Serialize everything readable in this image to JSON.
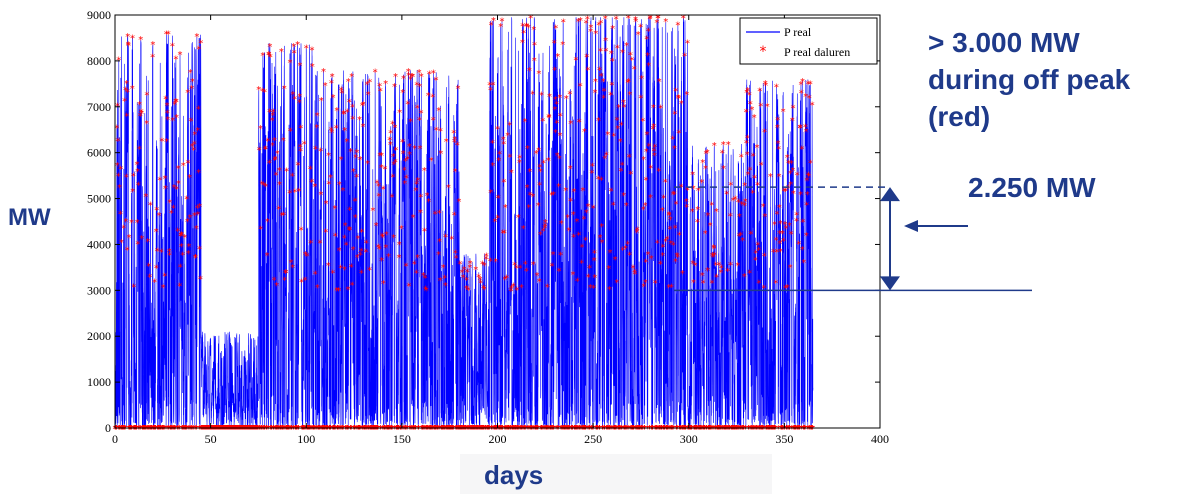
{
  "chart_data": {
    "type": "line",
    "ylabel": "MW",
    "xlabel": "days",
    "xlim": [
      0,
      400
    ],
    "ylim": [
      0,
      9000
    ],
    "xticks": [
      0,
      50,
      100,
      150,
      200,
      250,
      300,
      350,
      400
    ],
    "yticks": [
      0,
      1000,
      2000,
      3000,
      4000,
      5000,
      6000,
      7000,
      8000,
      9000
    ],
    "legend": {
      "position": "top-right",
      "entries": [
        "P real",
        "P real daluren"
      ]
    },
    "series": [
      {
        "name": "P real",
        "color": "#0000ff",
        "style": "line"
      },
      {
        "name": "P real daluren",
        "color": "#ff0000",
        "style": "marker",
        "threshold": 3000
      }
    ],
    "annotations": {
      "main": "> 3.000 MW\nduring off peak\n(red)",
      "delta": "2.250 MW",
      "solid_line_y": 3000,
      "dashed_line_y": 5250
    }
  }
}
